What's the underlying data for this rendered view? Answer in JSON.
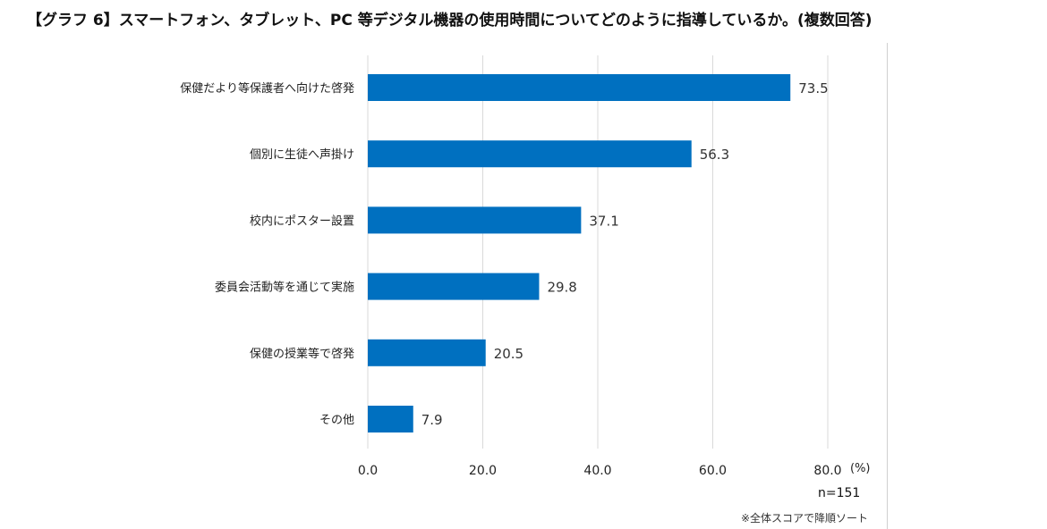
{
  "title": "【グラフ 6】スマートフォン、タブレット、PC 等デジタル機器の使用時間についてどのように指導しているか。(複数回答)",
  "chart_data": {
    "type": "bar",
    "orientation": "horizontal",
    "categories": [
      "保健だより等保護者へ向けた啓発",
      "個別に生徒へ声掛け",
      "校内にポスター設置",
      "委員会活動等を通じて実施",
      "保健の授業等で啓発",
      "その他"
    ],
    "values": [
      73.5,
      56.3,
      37.1,
      29.8,
      20.5,
      7.9
    ],
    "value_labels": [
      "73.5",
      "56.3",
      "37.1",
      "29.8",
      "20.5",
      "7.9"
    ],
    "xlim": [
      0,
      80
    ],
    "xticks": [
      "0.0",
      "20.0",
      "40.0",
      "60.0",
      "80.0"
    ],
    "tick_values": [
      0,
      20,
      40,
      60,
      80
    ],
    "unit": "(%)",
    "bar_color": "#0070c0",
    "grid_color": "#d9d9d9",
    "grid": true,
    "legend": "none"
  },
  "footer": {
    "n": "n=151",
    "note": "※全体スコアで降順ソート"
  }
}
